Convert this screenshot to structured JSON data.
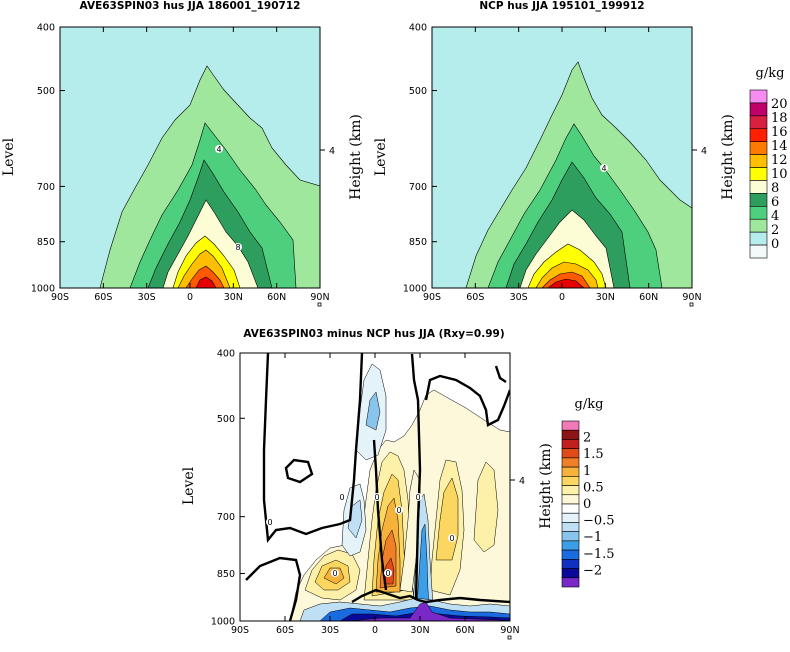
{
  "chart_data": [
    {
      "type": "heatmap",
      "title": "AVE63SPIN03 hus JJA 186001_190712",
      "ylabel": "Level",
      "ylabel_right": "Height (km)",
      "right_ticks": [
        "4"
      ],
      "x_ticks": [
        "90S",
        "60S",
        "30S",
        "0",
        "30N",
        "60N",
        "90N"
      ],
      "x_values": [
        -90,
        -60,
        -30,
        0,
        30,
        60,
        90
      ],
      "y_ticks": [
        "400",
        "500",
        "700",
        "850",
        "1000"
      ],
      "y_values": [
        400,
        500,
        700,
        850,
        1000
      ],
      "ylim": [
        1000,
        400
      ],
      "contour_labels": [
        "4",
        "8"
      ],
      "levels": [
        {
          "value": 0,
          "color": "#b5ecec"
        },
        {
          "value": 2,
          "color": "#9fe79d"
        },
        {
          "value": 4,
          "color": "#4dcf7e"
        },
        {
          "value": 6,
          "color": "#2e9e5f"
        },
        {
          "value": 8,
          "color": "#fcfdd4"
        },
        {
          "value": 10,
          "color": "#ffff00"
        },
        {
          "value": 12,
          "color": "#ffbf00"
        },
        {
          "value": 14,
          "color": "#ff5a00"
        },
        {
          "value": 16,
          "color": "#e60000"
        }
      ]
    },
    {
      "type": "heatmap",
      "title": "NCP hus JJA 195101_199912",
      "ylabel": "Level",
      "ylabel_right": "Height (km)",
      "right_ticks": [
        "4"
      ],
      "x_ticks": [
        "90S",
        "60S",
        "30S",
        "0",
        "30N",
        "60N",
        "90N"
      ],
      "x_values": [
        -90,
        -60,
        -30,
        0,
        30,
        60,
        90
      ],
      "y_ticks": [
        "400",
        "500",
        "700",
        "850",
        "1000"
      ],
      "y_values": [
        400,
        500,
        700,
        850,
        1000
      ],
      "ylim": [
        1000,
        400
      ],
      "contour_labels": [
        "4"
      ],
      "colorbar": {
        "unit": "g/kg",
        "labels": [
          "20",
          "18",
          "16",
          "14",
          "12",
          "10",
          "8",
          "6",
          "4",
          "2",
          "0"
        ],
        "colors": [
          "#f58cf0",
          "#c0006a",
          "#d82040",
          "#ff2000",
          "#ff7a00",
          "#ffbf00",
          "#ffff00",
          "#fcfdd4",
          "#2e9e5f",
          "#4dcf7e",
          "#9fe79d",
          "#b5ecec",
          "#f2fafa"
        ]
      }
    },
    {
      "type": "heatmap",
      "title": "AVE63SPIN03 minus NCP hus JJA (Rxy=0.99)",
      "ylabel": "Level",
      "ylabel_right": "Height (km)",
      "right_ticks": [
        "4"
      ],
      "x_ticks": [
        "90S",
        "60S",
        "30S",
        "0",
        "30N",
        "60N",
        "90N"
      ],
      "x_values": [
        -90,
        -60,
        -30,
        0,
        30,
        60,
        90
      ],
      "y_ticks": [
        "400",
        "500",
        "700",
        "850",
        "1000"
      ],
      "y_values": [
        400,
        500,
        700,
        850,
        1000
      ],
      "ylim": [
        1000,
        400
      ],
      "contour_labels": [
        "0",
        "0",
        "0",
        "0",
        "0",
        "0",
        "0",
        "0"
      ],
      "colorbar": {
        "unit": "g/kg",
        "labels": [
          "2",
          "1.5",
          "1",
          "0.5",
          "0",
          "−0.5",
          "−1",
          "−1.5",
          "−2"
        ],
        "colors": [
          "#f07ab8",
          "#8c1414",
          "#c02020",
          "#e24a1a",
          "#f08028",
          "#f7b23c",
          "#fbd660",
          "#fdf0a8",
          "#fdf8da",
          "#ffffff",
          "#e4f2fa",
          "#bfe0f4",
          "#88c4ec",
          "#3c9ee8",
          "#1a6ae0",
          "#0f30c0",
          "#0a0a9a",
          "#7a28c8"
        ]
      }
    }
  ]
}
